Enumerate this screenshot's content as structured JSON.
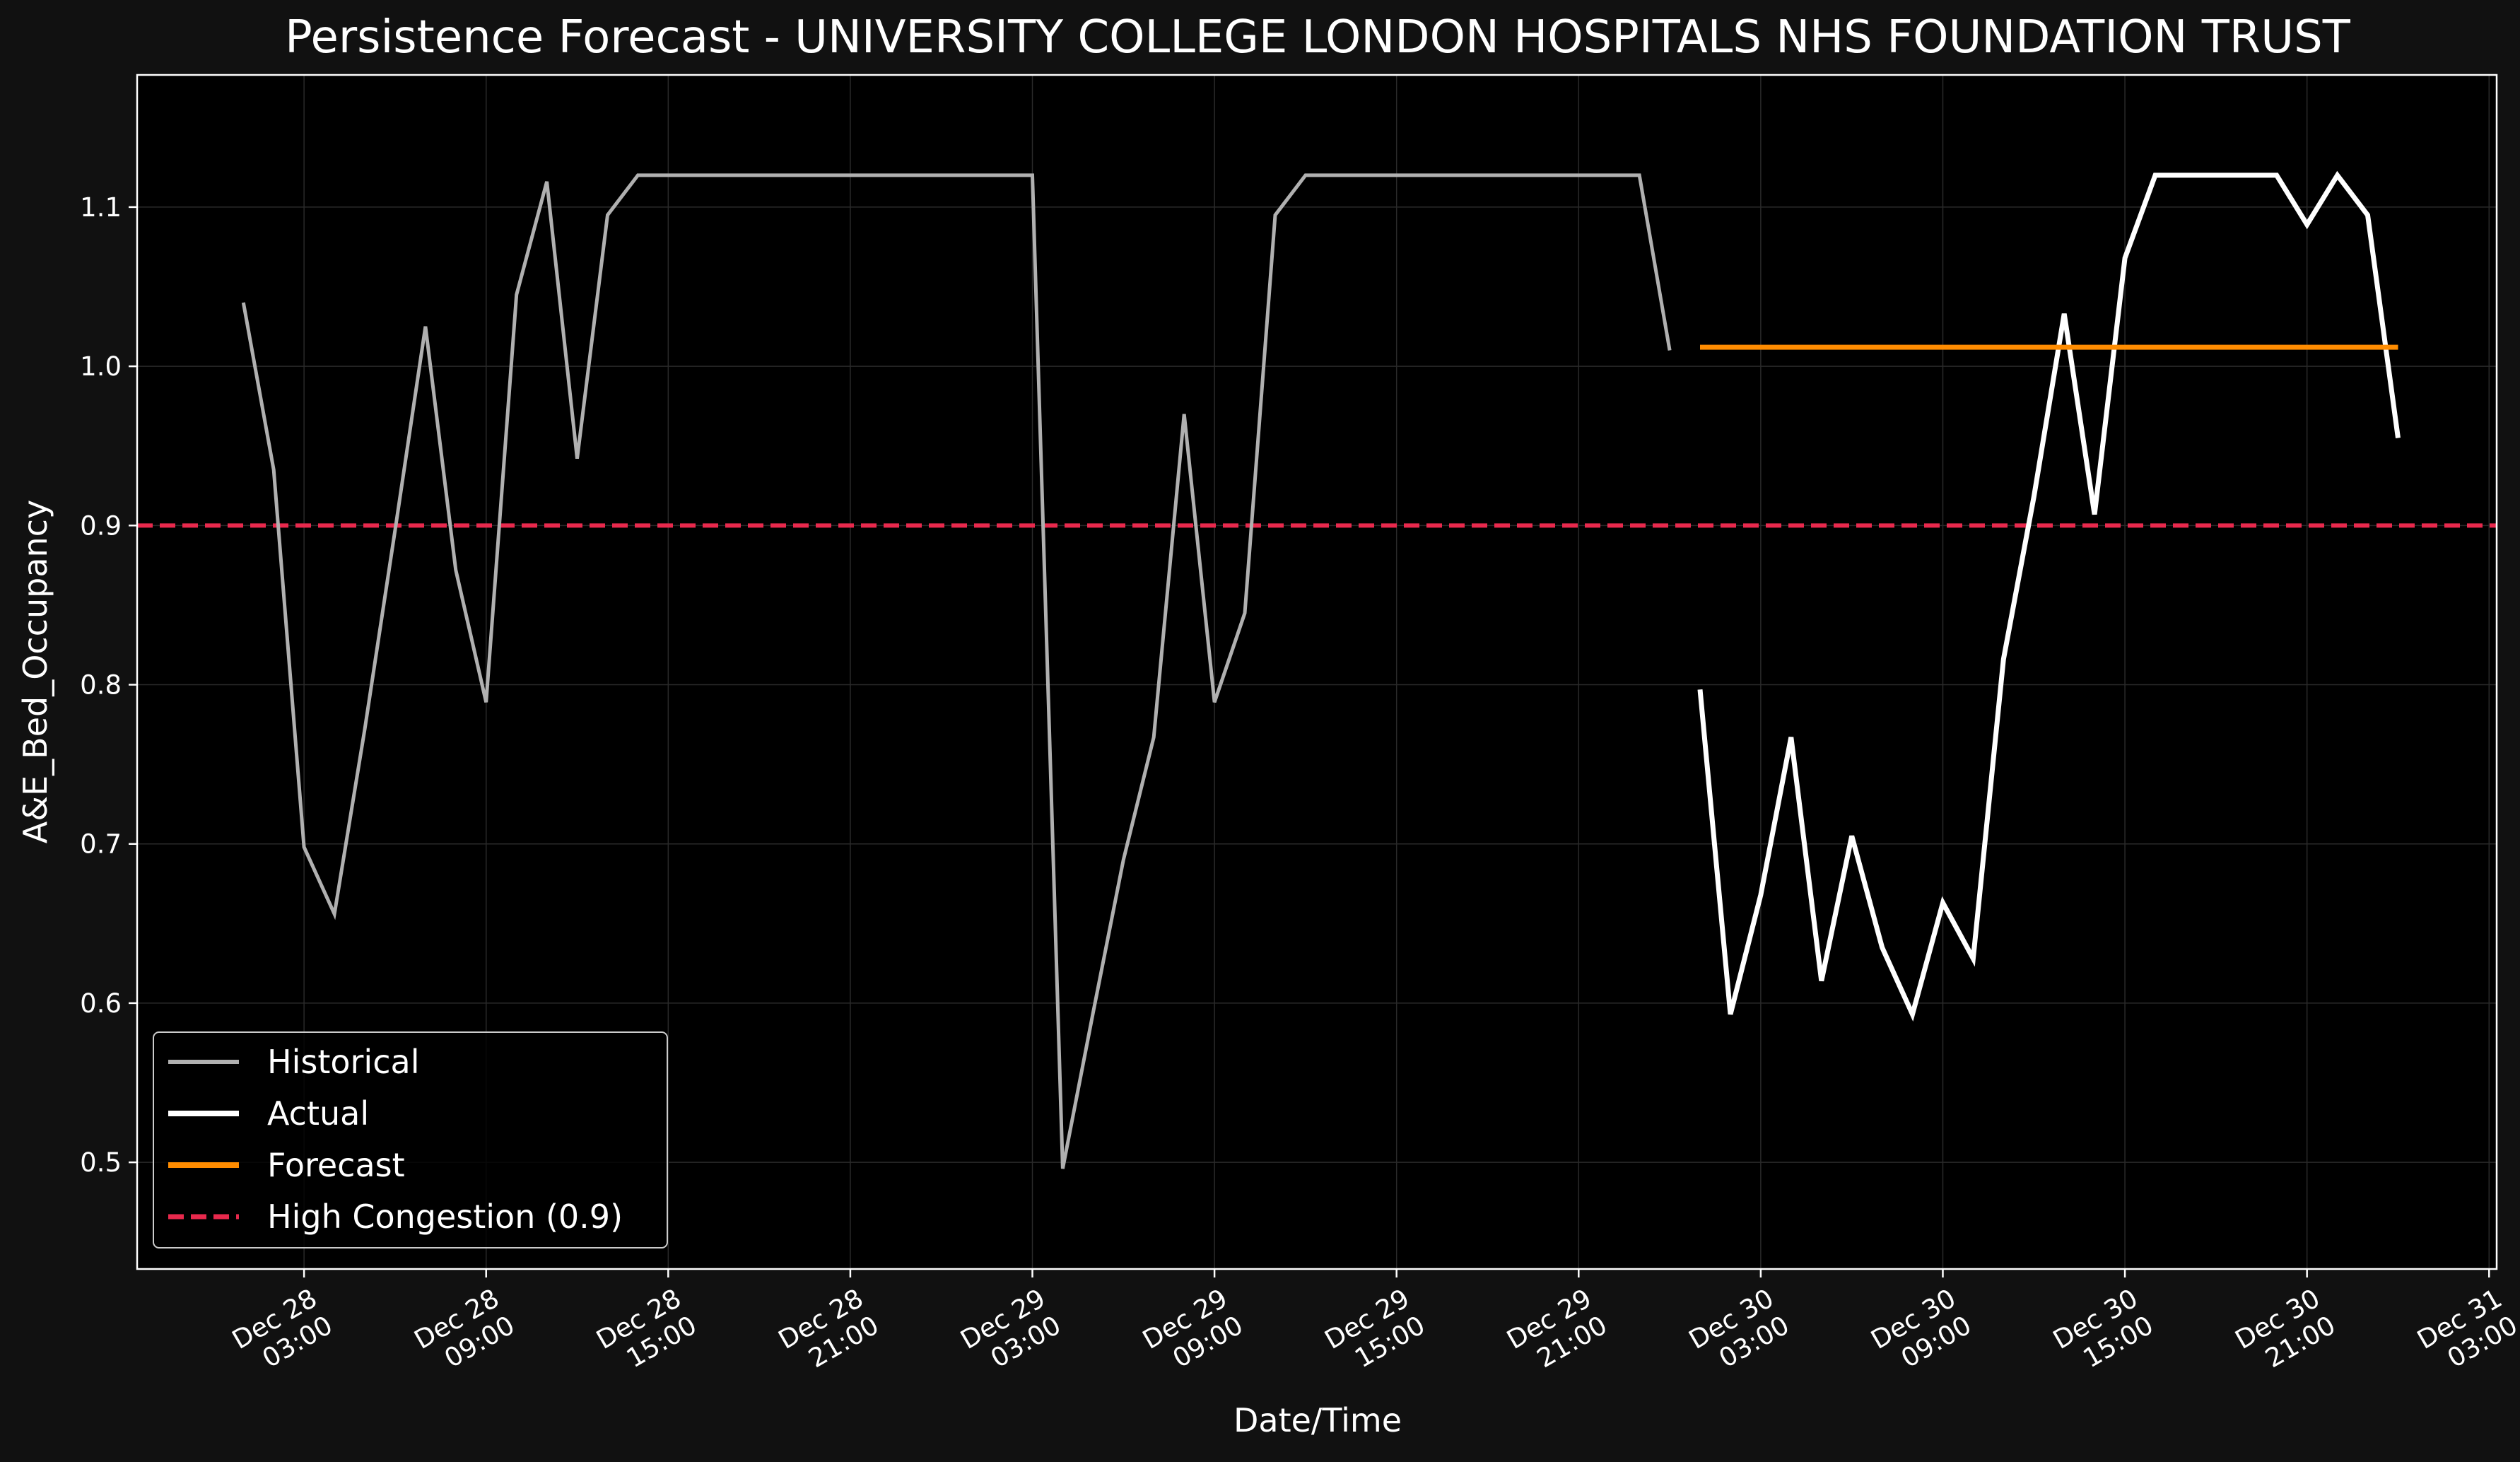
{
  "chart_data": {
    "type": "line",
    "title": "Persistence Forecast - UNIVERSITY COLLEGE LONDON HOSPITALS NHS FOUNDATION TRUST",
    "xlabel": "Date/Time",
    "ylabel": "A&E_Bed_Occupancy",
    "xlim": [
      "2024-12-27T21:30",
      "2024-12-31T03:15"
    ],
    "ylim": [
      0.433,
      1.183
    ],
    "grid": true,
    "legend_position": "lower-left",
    "x_ticks": [
      {
        "at": "2024-12-28T03:00",
        "line1": "Dec 28",
        "line2": "03:00"
      },
      {
        "at": "2024-12-28T09:00",
        "line1": "Dec 28",
        "line2": "09:00"
      },
      {
        "at": "2024-12-28T15:00",
        "line1": "Dec 28",
        "line2": "15:00"
      },
      {
        "at": "2024-12-28T21:00",
        "line1": "Dec 28",
        "line2": "21:00"
      },
      {
        "at": "2024-12-29T03:00",
        "line1": "Dec 29",
        "line2": "03:00"
      },
      {
        "at": "2024-12-29T09:00",
        "line1": "Dec 29",
        "line2": "09:00"
      },
      {
        "at": "2024-12-29T15:00",
        "line1": "Dec 29",
        "line2": "15:00"
      },
      {
        "at": "2024-12-29T21:00",
        "line1": "Dec 29",
        "line2": "21:00"
      },
      {
        "at": "2024-12-30T03:00",
        "line1": "Dec 30",
        "line2": "03:00"
      },
      {
        "at": "2024-12-30T09:00",
        "line1": "Dec 30",
        "line2": "09:00"
      },
      {
        "at": "2024-12-30T15:00",
        "line1": "Dec 30",
        "line2": "15:00"
      },
      {
        "at": "2024-12-30T21:00",
        "line1": "Dec 30",
        "line2": "21:00"
      },
      {
        "at": "2024-12-31T03:00",
        "line1": "Dec 31",
        "line2": "03:00"
      }
    ],
    "y_ticks": [
      {
        "value": 0.5,
        "label": "0.5"
      },
      {
        "value": 0.6,
        "label": "0.6"
      },
      {
        "value": 0.7,
        "label": "0.7"
      },
      {
        "value": 0.8,
        "label": "0.8"
      },
      {
        "value": 0.9,
        "label": "0.9"
      },
      {
        "value": 1.0,
        "label": "1.0"
      },
      {
        "value": 1.1,
        "label": "1.1"
      }
    ],
    "series": [
      {
        "name": "Historical",
        "color": "#b0b0b0",
        "style": "solid",
        "points": [
          [
            "2024-12-28T01:00",
            1.04
          ],
          [
            "2024-12-28T02:00",
            0.935
          ],
          [
            "2024-12-28T03:00",
            0.698
          ],
          [
            "2024-12-28T04:00",
            0.656
          ],
          [
            "2024-12-28T05:00",
            0.772
          ],
          [
            "2024-12-28T06:00",
            0.897
          ],
          [
            "2024-12-28T07:00",
            1.025
          ],
          [
            "2024-12-28T08:00",
            0.872
          ],
          [
            "2024-12-28T09:00",
            0.789
          ],
          [
            "2024-12-28T10:00",
            1.045
          ],
          [
            "2024-12-28T11:00",
            1.116
          ],
          [
            "2024-12-28T12:00",
            0.942
          ],
          [
            "2024-12-28T13:00",
            1.095
          ],
          [
            "2024-12-28T14:00",
            1.12
          ],
          [
            "2024-12-28T15:00",
            1.12
          ],
          [
            "2024-12-28T16:00",
            1.12
          ],
          [
            "2024-12-28T17:00",
            1.12
          ],
          [
            "2024-12-28T18:00",
            1.12
          ],
          [
            "2024-12-28T19:00",
            1.12
          ],
          [
            "2024-12-28T20:00",
            1.12
          ],
          [
            "2024-12-28T21:00",
            1.12
          ],
          [
            "2024-12-28T22:00",
            1.12
          ],
          [
            "2024-12-28T23:00",
            1.12
          ],
          [
            "2024-12-29T00:00",
            1.12
          ],
          [
            "2024-12-29T01:00",
            1.12
          ],
          [
            "2024-12-29T02:00",
            1.12
          ],
          [
            "2024-12-29T03:00",
            1.12
          ],
          [
            "2024-12-29T04:00",
            0.496
          ],
          [
            "2024-12-29T05:00",
            0.594
          ],
          [
            "2024-12-29T06:00",
            0.69
          ],
          [
            "2024-12-29T07:00",
            0.767
          ],
          [
            "2024-12-29T08:00",
            0.97
          ],
          [
            "2024-12-29T09:00",
            0.789
          ],
          [
            "2024-12-29T10:00",
            0.845
          ],
          [
            "2024-12-29T11:00",
            1.095
          ],
          [
            "2024-12-29T12:00",
            1.12
          ],
          [
            "2024-12-29T13:00",
            1.12
          ],
          [
            "2024-12-29T14:00",
            1.12
          ],
          [
            "2024-12-29T15:00",
            1.12
          ],
          [
            "2024-12-29T16:00",
            1.12
          ],
          [
            "2024-12-29T17:00",
            1.12
          ],
          [
            "2024-12-29T18:00",
            1.12
          ],
          [
            "2024-12-29T19:00",
            1.12
          ],
          [
            "2024-12-29T20:00",
            1.12
          ],
          [
            "2024-12-29T21:00",
            1.12
          ],
          [
            "2024-12-29T22:00",
            1.12
          ],
          [
            "2024-12-29T23:00",
            1.12
          ],
          [
            "2024-12-30T00:00",
            1.01
          ]
        ]
      },
      {
        "name": "Actual",
        "color": "#ffffff",
        "style": "solid",
        "points": [
          [
            "2024-12-30T01:00",
            0.797
          ],
          [
            "2024-12-30T02:00",
            0.593
          ],
          [
            "2024-12-30T03:00",
            0.668
          ],
          [
            "2024-12-30T04:00",
            0.767
          ],
          [
            "2024-12-30T05:00",
            0.614
          ],
          [
            "2024-12-30T06:00",
            0.705
          ],
          [
            "2024-12-30T07:00",
            0.635
          ],
          [
            "2024-12-30T08:00",
            0.593
          ],
          [
            "2024-12-30T09:00",
            0.663
          ],
          [
            "2024-12-30T10:00",
            0.628
          ],
          [
            "2024-12-30T11:00",
            0.816
          ],
          [
            "2024-12-30T12:00",
            0.918
          ],
          [
            "2024-12-30T13:00",
            1.033
          ],
          [
            "2024-12-30T14:00",
            0.907
          ],
          [
            "2024-12-30T15:00",
            1.068
          ],
          [
            "2024-12-30T16:00",
            1.12
          ],
          [
            "2024-12-30T17:00",
            1.12
          ],
          [
            "2024-12-30T18:00",
            1.12
          ],
          [
            "2024-12-30T19:00",
            1.12
          ],
          [
            "2024-12-30T20:00",
            1.12
          ],
          [
            "2024-12-30T21:00",
            1.089
          ],
          [
            "2024-12-30T22:00",
            1.12
          ],
          [
            "2024-12-30T23:00",
            1.095
          ],
          [
            "2024-12-31T00:00",
            0.955
          ]
        ]
      },
      {
        "name": "Forecast",
        "color": "#ff8c00",
        "style": "solid",
        "points": [
          [
            "2024-12-30T01:00",
            1.012
          ],
          [
            "2024-12-31T00:00",
            1.012
          ]
        ]
      }
    ],
    "threshold": {
      "name": "High Congestion (0.9)",
      "value": 0.9,
      "color": "#e8294d",
      "style": "dashed"
    }
  }
}
